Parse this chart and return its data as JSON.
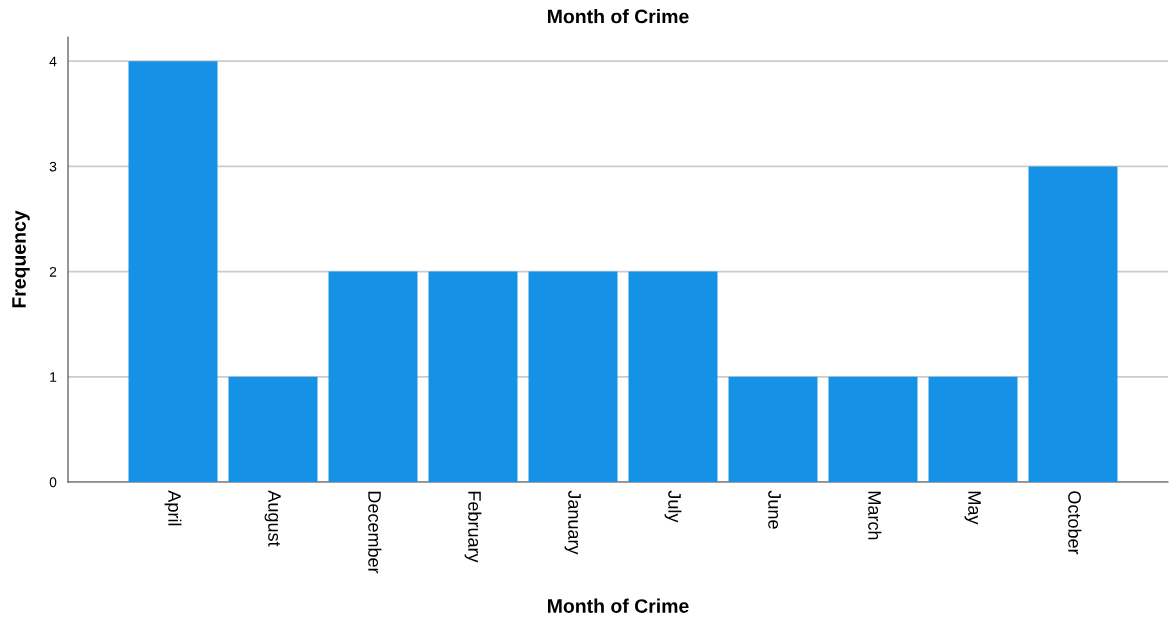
{
  "chart_data": {
    "type": "bar",
    "title": "Month of Crime",
    "xlabel": "Month of Crime",
    "ylabel": "Frequency",
    "categories": [
      "April",
      "August",
      "December",
      "February",
      "January",
      "July",
      "June",
      "March",
      "May",
      "October"
    ],
    "values": [
      4,
      1,
      2,
      2,
      2,
      2,
      1,
      1,
      1,
      3
    ],
    "color": "#1592e6",
    "ylim": [
      0,
      4.23
    ],
    "yticks": [
      0,
      1,
      2,
      3,
      4
    ],
    "grid": "y"
  }
}
